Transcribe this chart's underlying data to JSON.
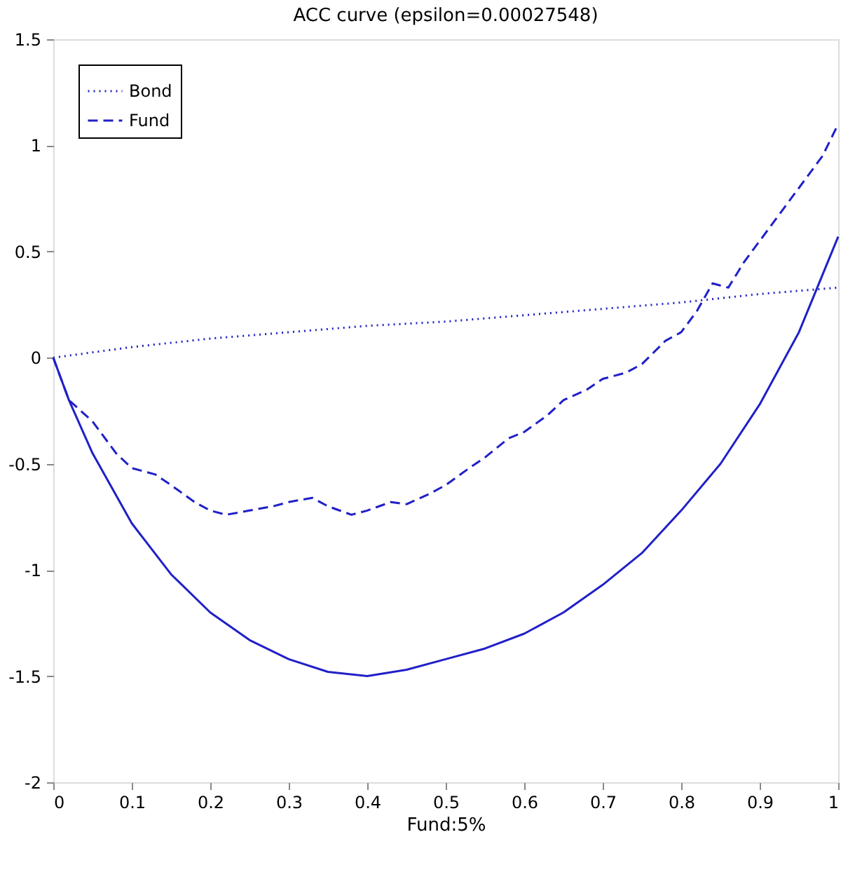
{
  "chart_data": {
    "type": "line",
    "title": "ACC curve (epsilon=0.00027548)",
    "xlabel": "Fund:5%",
    "xlim": [
      0,
      1
    ],
    "xticks": [
      0,
      0.1,
      0.2,
      0.3,
      0.4,
      0.5,
      0.6,
      0.7,
      0.8,
      0.9,
      1
    ],
    "ylim": [
      -2,
      1.5
    ],
    "yticks": [
      -2,
      -1.5,
      -1,
      -0.5,
      0,
      0.5,
      1,
      1.5
    ],
    "grid": false,
    "legend": "top left",
    "marker": "none",
    "series": [
      {
        "color": "#2020c8",
        "line_style": "solid",
        "x": [
          0,
          0.02,
          0.05,
          0.1,
          0.15,
          0.2,
          0.25,
          0.3,
          0.35,
          0.4,
          0.45,
          0.5,
          0.55,
          0.6,
          0.65,
          0.7,
          0.75,
          0.8,
          0.85,
          0.9,
          0.95,
          1
        ],
        "values": [
          0,
          -0.2,
          -0.45,
          -0.78,
          -1.02,
          -1.2,
          -1.33,
          -1.42,
          -1.48,
          -1.5,
          -1.47,
          -1.42,
          -1.37,
          -1.3,
          -1.2,
          -1.07,
          -0.92,
          -0.72,
          -0.5,
          -0.22,
          0.12,
          0.57
        ]
      },
      {
        "name": "Bond",
        "color": "#2020c8",
        "line_style": "dotted",
        "x": [
          0,
          0.1,
          0.2,
          0.3,
          0.4,
          0.5,
          0.6,
          0.7,
          0.8,
          0.9,
          1
        ],
        "values": [
          0,
          0.05,
          0.09,
          0.12,
          0.15,
          0.17,
          0.2,
          0.23,
          0.26,
          0.3,
          0.33
        ]
      },
      {
        "name": "Fund",
        "color": "#2020c8",
        "line_style": "dashed",
        "x": [
          0,
          0.02,
          0.05,
          0.08,
          0.1,
          0.13,
          0.15,
          0.18,
          0.2,
          0.22,
          0.25,
          0.28,
          0.3,
          0.33,
          0.35,
          0.38,
          0.4,
          0.43,
          0.45,
          0.48,
          0.5,
          0.53,
          0.55,
          0.58,
          0.6,
          0.63,
          0.65,
          0.68,
          0.7,
          0.73,
          0.75,
          0.78,
          0.8,
          0.82,
          0.84,
          0.86,
          0.88,
          0.9,
          0.93,
          0.96,
          0.98,
          1
        ],
        "values": [
          0,
          -0.2,
          -0.3,
          -0.45,
          -0.52,
          -0.55,
          -0.6,
          -0.68,
          -0.72,
          -0.74,
          -0.72,
          -0.7,
          -0.68,
          -0.66,
          -0.7,
          -0.74,
          -0.72,
          -0.68,
          -0.69,
          -0.64,
          -0.6,
          -0.52,
          -0.47,
          -0.38,
          -0.35,
          -0.27,
          -0.2,
          -0.15,
          -0.1,
          -0.07,
          -0.03,
          0.08,
          0.12,
          0.22,
          0.35,
          0.33,
          0.45,
          0.55,
          0.7,
          0.85,
          0.95,
          1.1
        ]
      }
    ]
  }
}
